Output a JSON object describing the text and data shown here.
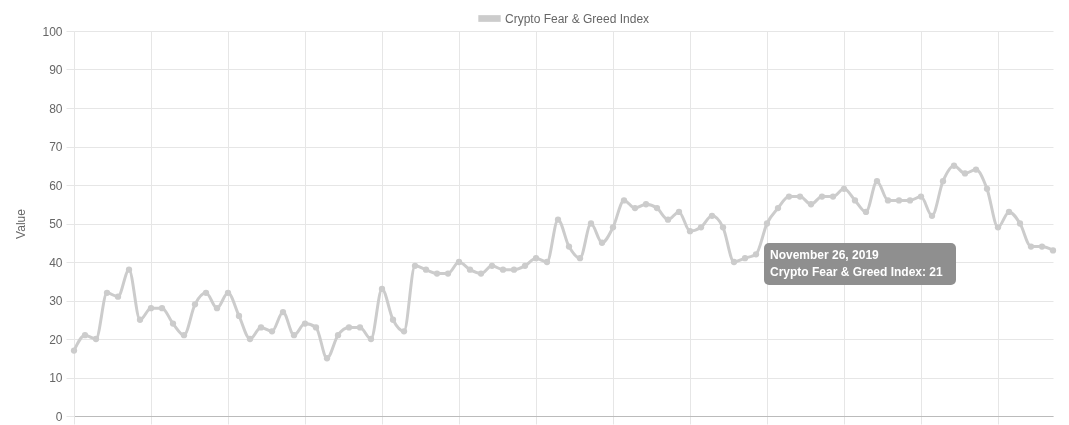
{
  "chart_data": {
    "type": "line",
    "ylabel": "Value",
    "categories": [
      null,
      null,
      null,
      null,
      null,
      null,
      null,
      null,
      null,
      null,
      null,
      null,
      null,
      null,
      null,
      null,
      null,
      null,
      null,
      null,
      null,
      null,
      null,
      null,
      null,
      null,
      null,
      null,
      null,
      null,
      null,
      null,
      null,
      null,
      null,
      null,
      null,
      null,
      null,
      null,
      null,
      null,
      null,
      null,
      null,
      null,
      null,
      null,
      null,
      null,
      null,
      null,
      null,
      null,
      null,
      null,
      null,
      null,
      null,
      null,
      null,
      null,
      null,
      null,
      null,
      null,
      null,
      null,
      null,
      null,
      null,
      null,
      null,
      null,
      null,
      null,
      null,
      null,
      null,
      null,
      null,
      null,
      null,
      null,
      null,
      null,
      null,
      null,
      null,
      null
    ],
    "series": [
      {
        "name": "Crypto Fear & Greed Index",
        "color": "#cccccc",
        "values": [
          17,
          21,
          20,
          32,
          31,
          38,
          25,
          28,
          28,
          24,
          21,
          29,
          32,
          28,
          32,
          26,
          20,
          23,
          22,
          27,
          21,
          24,
          23,
          15,
          21,
          23,
          23,
          20,
          33,
          25,
          22,
          39,
          38,
          37,
          37,
          40,
          38,
          37,
          39,
          38,
          38,
          39,
          41,
          40,
          51,
          44,
          41,
          50,
          45,
          49,
          56,
          54,
          55,
          54,
          51,
          53,
          48,
          49,
          52,
          49,
          40,
          41,
          42,
          50,
          54,
          57,
          57,
          55,
          57,
          57,
          59,
          56,
          53,
          61,
          56,
          56,
          56,
          57,
          52,
          61,
          65,
          63,
          64,
          59,
          49,
          53,
          50,
          44,
          44,
          43
        ]
      }
    ],
    "ylim": [
      0,
      100
    ],
    "yticks": [
      0,
      10,
      20,
      30,
      40,
      50,
      60,
      70,
      80,
      90,
      100
    ],
    "grid": true,
    "legend": "top",
    "marker": "circle",
    "line_style": "solid",
    "annotations": [
      "November 26, 2019",
      "Crypto Fear & Greed Index: 21"
    ]
  }
}
